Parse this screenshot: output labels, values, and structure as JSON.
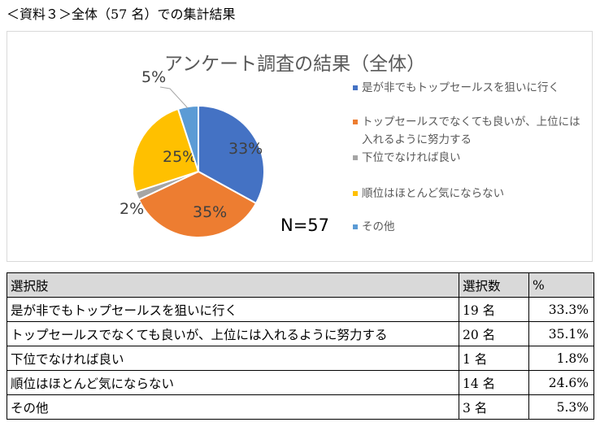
{
  "caption": "＜資料３＞全体（57 名）での集計結果",
  "chart_data": {
    "type": "pie",
    "title": "アンケート調査の結果（全体）",
    "annotation": "N=57",
    "legend_position": "right",
    "slices": [
      {
        "name": "是が非でもトップセールスを狙いに行く",
        "value": 33,
        "label": "33%",
        "color": "#4472c4"
      },
      {
        "name": "トップセールスでなくても良いが、上位には入れるように努力する",
        "value": 35,
        "label": "35%",
        "color": "#ed7d31"
      },
      {
        "name": "下位でなければ良い",
        "value": 2,
        "label": "2%",
        "color": "#a5a5a5"
      },
      {
        "name": "順位はほとんど気にならない",
        "value": 25,
        "label": "25%",
        "color": "#ffc000"
      },
      {
        "name": "その他",
        "value": 5,
        "label": "5%",
        "color": "#5b9bd5"
      }
    ]
  },
  "table": {
    "headers": [
      "選択肢",
      "選択数",
      "%"
    ],
    "rows": [
      [
        "是が非でもトップセールスを狙いに行く",
        "19 名",
        "33.3%"
      ],
      [
        "トップセールスでなくても良いが、上位には入れるように努力する",
        "20 名",
        "35.1%"
      ],
      [
        "下位でなければ良い",
        "1 名",
        "1.8%"
      ],
      [
        "順位はほとんど気にならない",
        "14 名",
        "24.6%"
      ],
      [
        "その他",
        "3 名",
        "5.3%"
      ]
    ]
  }
}
